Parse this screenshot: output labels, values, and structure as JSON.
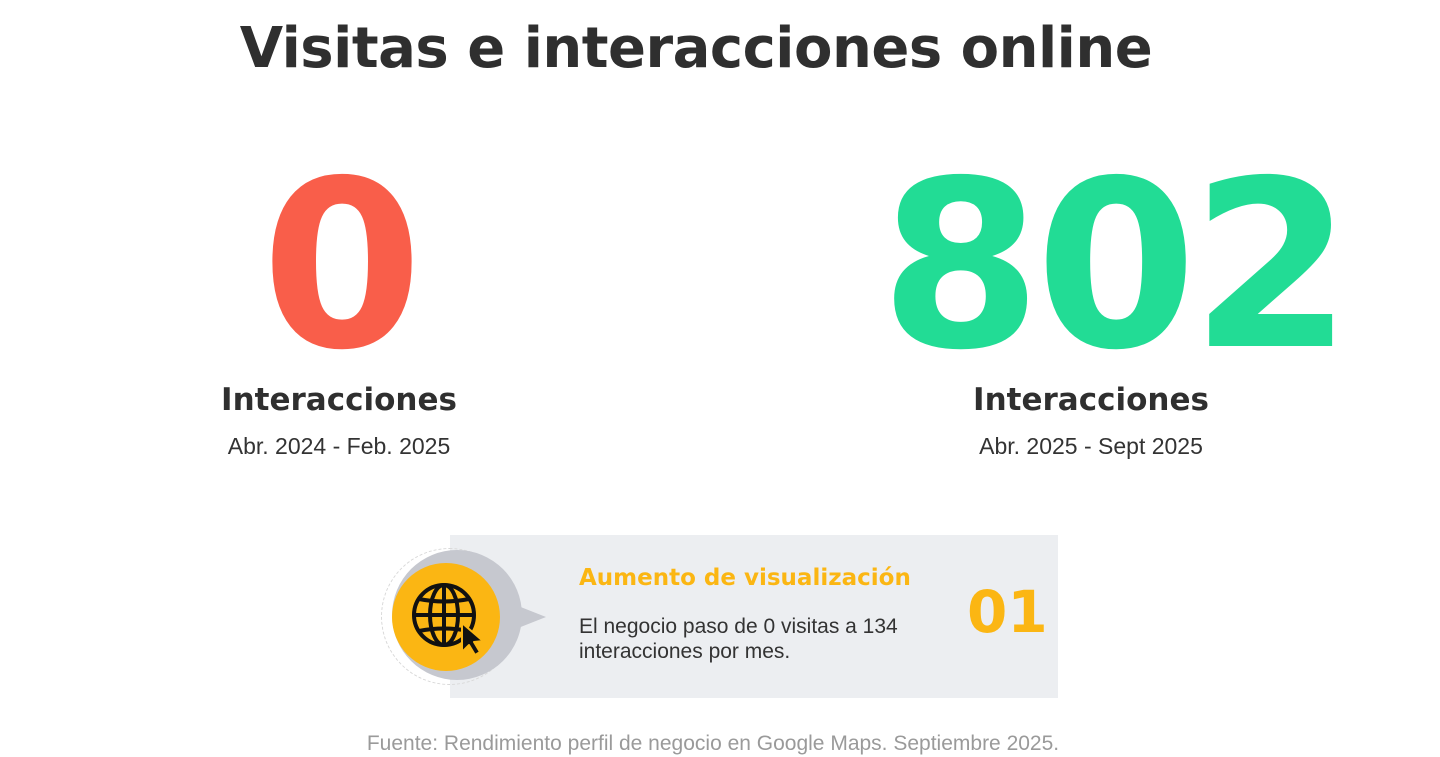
{
  "title": "Visitas e interacciones online",
  "stats": [
    {
      "value": "0",
      "label": "Interacciones",
      "range": "Abr. 2024 - Feb. 2025",
      "color": "#f95e4a"
    },
    {
      "value": "802",
      "label": "Interacciones",
      "range": "Abr. 2025 - Sept 2025",
      "color": "#22dc95"
    }
  ],
  "card": {
    "icon": "globe-cursor-icon",
    "title": "Aumento de visualización",
    "text": "El negocio paso de 0 visitas a 134 interacciones por mes.",
    "number": "01",
    "accent_color": "#fbb613",
    "background_color": "#eceef1"
  },
  "source": "Fuente: Rendimiento perfil de negocio en Google Maps. Septiembre 2025."
}
